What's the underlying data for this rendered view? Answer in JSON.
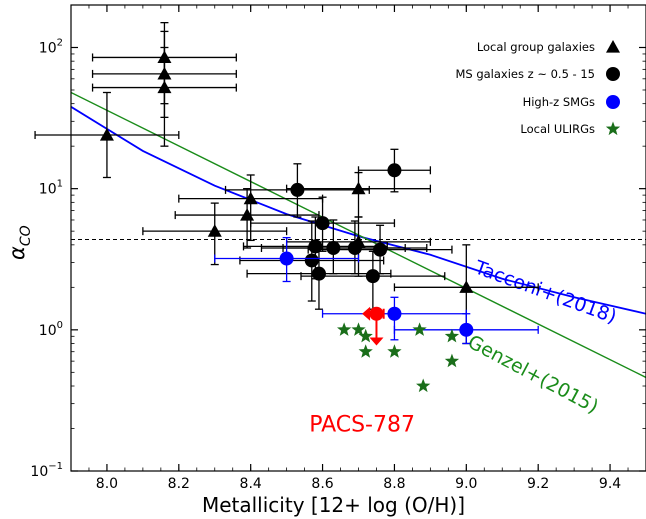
{
  "chart_data": {
    "type": "scatter",
    "xlabel": "Metallicity [12+ log (O/H)]",
    "ylabel_main": "α",
    "ylabel_sub": "CO",
    "xlim": [
      7.9,
      9.5
    ],
    "ylim": [
      0.1,
      200
    ],
    "yscale": "log",
    "x_ticks": [
      8.0,
      8.2,
      8.4,
      8.6,
      8.8,
      9.0,
      9.2,
      9.4
    ],
    "x_tick_labels": [
      "8.0",
      "8.2",
      "8.4",
      "8.6",
      "8.8",
      "9.0",
      "9.2",
      "9.4"
    ],
    "y_ticks": [
      {
        "value": 0.1,
        "base": "10",
        "exp": "−1"
      },
      {
        "value": 1,
        "base": "10",
        "exp": "0"
      },
      {
        "value": 10,
        "base": "10",
        "exp": "1"
      },
      {
        "value": 100,
        "base": "10",
        "exp": "2"
      }
    ],
    "grid": false,
    "legend_position": "top-right",
    "hline": {
      "y": 4.36,
      "style": "dashed",
      "color": "#000000"
    },
    "series": [
      {
        "name": "Local group galaxies",
        "marker": "triangle",
        "color": "#000000",
        "points": [
          {
            "x": 8.0,
            "y": 24,
            "xerr": 0.2,
            "ylo": 12,
            "yhi": 48
          },
          {
            "x": 8.16,
            "y": 85,
            "xerr": 0.2,
            "ylo": 40,
            "yhi": 150
          },
          {
            "x": 8.16,
            "y": 65,
            "xerr": 0.2,
            "ylo": 32,
            "yhi": 130
          },
          {
            "x": 8.16,
            "y": 52,
            "xerr": 0.2,
            "ylo": 20,
            "yhi": 100
          },
          {
            "x": 8.3,
            "y": 5.0,
            "xerr": 0.2,
            "ylo": 2.9,
            "yhi": 7.9
          },
          {
            "x": 8.4,
            "y": 8.5,
            "xerr": 0.2,
            "ylo": 4.3,
            "yhi": 12.5
          },
          {
            "x": 8.39,
            "y": 6.5,
            "xerr": 0.2,
            "ylo": 3.8,
            "yhi": 10
          },
          {
            "x": 8.7,
            "y": 10,
            "xerr": 0.2,
            "ylo": 6.3,
            "yhi": 13
          },
          {
            "x": 8.7,
            "y": 4.2,
            "xerr": 0.2,
            "ylo": 2.4,
            "yhi": 6.3
          },
          {
            "x": 9.0,
            "y": 2.0,
            "xerr": 0.2,
            "ylo": 0.8,
            "yhi": 4.0
          }
        ]
      },
      {
        "name": "MS galaxies z ~ 0.5 - 15",
        "marker": "circle",
        "color": "#000000",
        "points": [
          {
            "x": 8.53,
            "y": 9.8,
            "xerr": 0.2,
            "ylo": 6.3,
            "yhi": 15
          },
          {
            "x": 8.6,
            "y": 5.7,
            "xerr": 0.2,
            "ylo": 3.6,
            "yhi": 8.7
          },
          {
            "x": 8.8,
            "y": 13.5,
            "xerr": 0.1,
            "ylo": 9.5,
            "yhi": 19
          },
          {
            "x": 8.57,
            "y": 3.1,
            "xerr": 0.2,
            "ylo": 1.6,
            "yhi": 5.9
          },
          {
            "x": 8.58,
            "y": 3.9,
            "xerr": 0.2,
            "ylo": 2.3,
            "yhi": 6.3
          },
          {
            "x": 8.63,
            "y": 3.8,
            "xerr": 0.2,
            "ylo": 2.5,
            "yhi": 6.0
          },
          {
            "x": 8.69,
            "y": 3.8,
            "xerr": 0.2,
            "ylo": 2.5,
            "yhi": 5.9
          },
          {
            "x": 8.76,
            "y": 3.7,
            "xerr": 0.2,
            "ylo": 2.5,
            "yhi": 5.5
          },
          {
            "x": 8.59,
            "y": 2.5,
            "xerr": 0.2,
            "ylo": 1.4,
            "yhi": 3.8
          },
          {
            "x": 8.74,
            "y": 2.4,
            "xerr": 0.2,
            "ylo": 1.4,
            "yhi": 3.6
          }
        ]
      },
      {
        "name": "High-z SMGs",
        "marker": "circle",
        "color": "#0000ff",
        "points": [
          {
            "x": 8.5,
            "y": 3.2,
            "xerr": 0.2,
            "ylo": 2.2,
            "yhi": 4.5
          },
          {
            "x": 8.8,
            "y": 1.3,
            "xerr": 0.2,
            "ylo": 0.85,
            "yhi": 1.7
          },
          {
            "x": 9.0,
            "y": 1.0,
            "xerr": 0.2,
            "ylo": 0.8,
            "yhi": 1.3
          }
        ]
      },
      {
        "name": "Local ULIRGs",
        "marker": "star",
        "color": "#1a6e1a",
        "points": [
          {
            "x": 8.66,
            "y": 1.0
          },
          {
            "x": 8.7,
            "y": 1.0
          },
          {
            "x": 8.72,
            "y": 0.9
          },
          {
            "x": 8.72,
            "y": 0.7
          },
          {
            "x": 8.8,
            "y": 0.7
          },
          {
            "x": 8.87,
            "y": 1.0
          },
          {
            "x": 8.88,
            "y": 0.4
          },
          {
            "x": 8.96,
            "y": 0.9
          },
          {
            "x": 8.96,
            "y": 0.6
          }
        ]
      }
    ],
    "highlight": {
      "label": "PACS-787",
      "color": "#ff0000",
      "x": 8.75,
      "y": 1.3,
      "left_arrow_to": 8.71,
      "right_err": 0.02,
      "down_arrow_to": 0.8,
      "label_x": 8.71,
      "label_y": 0.19
    },
    "curves": [
      {
        "name": "Tacconi+(2018)",
        "color": "#0000ff",
        "x": [
          7.9,
          8.1,
          8.3,
          8.5,
          8.7,
          8.9,
          9.1,
          9.3,
          9.5
        ],
        "y": [
          38,
          18.5,
          10.5,
          6.6,
          4.6,
          3.4,
          2.3,
          1.7,
          1.3
        ],
        "label_x": 9.02,
        "label_y": 2.55,
        "label_angle": 20
      },
      {
        "name": "Genzel+(2015)",
        "color": "#1a8c1a",
        "x": [
          7.9,
          9.5
        ],
        "y": [
          48,
          0.46
        ],
        "label_x": 9.0,
        "label_y": 0.77,
        "label_angle": 28
      }
    ]
  }
}
